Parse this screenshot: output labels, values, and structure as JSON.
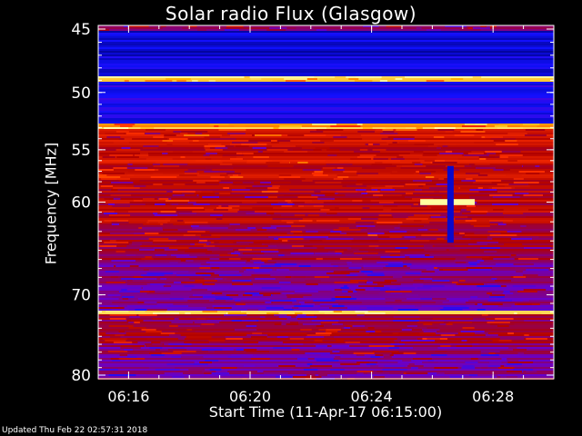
{
  "chart_data": {
    "type": "heatmap",
    "title": "Solar radio Flux (Glasgow)",
    "xlabel": "Start Time (11-Apr-17 06:15:00)",
    "ylabel": "Frequency [MHz]",
    "x_tick_labels": [
      "06:16",
      "06:20",
      "06:24",
      "06:28"
    ],
    "x_ticks_minutes": [
      16,
      20,
      24,
      28
    ],
    "xlim_minutes": [
      15,
      30
    ],
    "y_tick_labels": [
      "45",
      "50",
      "55",
      "60",
      "70",
      "80"
    ],
    "y_ticks": [
      45,
      50,
      55,
      60,
      70,
      80
    ],
    "ylim": [
      45,
      80
    ],
    "colormap": [
      "#000080",
      "#1010ff",
      "#6a00c8",
      "#b00000",
      "#ff3000",
      "#ffb000",
      "#ffffa0"
    ],
    "frequency_bands": [
      {
        "from": 45,
        "to": 48.6,
        "level": 0.12
      },
      {
        "from": 48.6,
        "to": 49.1,
        "level": 0.95
      },
      {
        "from": 49.1,
        "to": 52.6,
        "level": 0.18
      },
      {
        "from": 52.6,
        "to": 53.0,
        "level": 0.85
      },
      {
        "from": 53.0,
        "to": 58,
        "level": 0.55
      },
      {
        "from": 58,
        "to": 62,
        "level": 0.5
      },
      {
        "from": 62,
        "to": 66,
        "level": 0.48
      },
      {
        "from": 66,
        "to": 71.8,
        "level": 0.38
      },
      {
        "from": 71.8,
        "to": 72.3,
        "level": 0.95
      },
      {
        "from": 72.3,
        "to": 76,
        "level": 0.45
      },
      {
        "from": 76,
        "to": 80,
        "level": 0.4
      }
    ],
    "events": [
      {
        "label": "burst",
        "time_min": 26.5,
        "freq_from": 59.7,
        "freq_to": 60.3,
        "level": 1.0
      },
      {
        "label": "dropout",
        "time_min": 26.6,
        "freq_from": 56.5,
        "freq_to": 64.2,
        "level": 0.1
      }
    ]
  },
  "footer": "Updated Thu Feb 22 02:57:31 2018"
}
